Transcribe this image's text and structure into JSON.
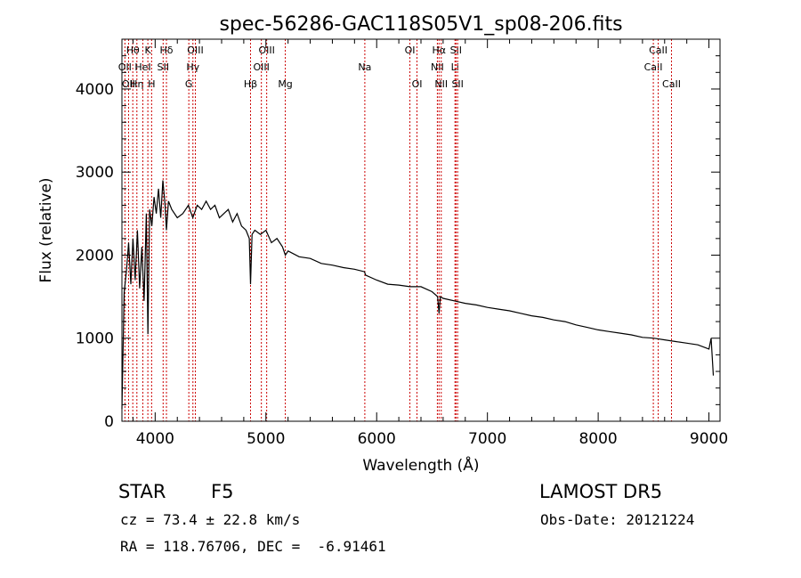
{
  "chart_data": {
    "type": "line",
    "title": "spec-56286-GAC118S05V1_sp08-206.fits",
    "xlabel": "Wavelength (Å)",
    "ylabel": "Flux (relative)",
    "xlim": [
      3700,
      9100
    ],
    "ylim": [
      0,
      4600
    ],
    "xticks": [
      4000,
      5000,
      6000,
      7000,
      8000,
      9000
    ],
    "yticks": [
      0,
      1000,
      2000,
      3000,
      4000
    ],
    "grid": false,
    "series": [
      {
        "x": [
          3700,
          3720,
          3740,
          3760,
          3780,
          3800,
          3820,
          3840,
          3860,
          3880,
          3900,
          3920,
          3935,
          3950,
          3970,
          3990,
          4010,
          4030,
          4050,
          4070,
          4090,
          4102,
          4120,
          4150,
          4200,
          4250,
          4300,
          4340,
          4380,
          4420,
          4460,
          4500,
          4540,
          4580,
          4620,
          4660,
          4700,
          4740,
          4780,
          4820,
          4850,
          4861,
          4875,
          4900,
          4950,
          5000,
          5050,
          5100,
          5150,
          5175,
          5200,
          5300,
          5400,
          5500,
          5600,
          5700,
          5800,
          5890,
          5900,
          6000,
          6100,
          6200,
          6300,
          6400,
          6500,
          6550,
          6563,
          6575,
          6600,
          6700,
          6800,
          6900,
          7000,
          7100,
          7200,
          7300,
          7400,
          7500,
          7600,
          7700,
          7800,
          7900,
          8000,
          8100,
          8200,
          8300,
          8400,
          8500,
          8600,
          8700,
          8800,
          8900,
          9000,
          9020,
          9040
        ],
        "y": [
          150,
          1550,
          1800,
          2150,
          1650,
          2200,
          1700,
          2300,
          1600,
          2100,
          1450,
          2500,
          1050,
          2550,
          2350,
          2700,
          2500,
          2800,
          2450,
          2900,
          2600,
          2300,
          2650,
          2550,
          2450,
          2500,
          2600,
          2450,
          2600,
          2550,
          2650,
          2550,
          2600,
          2450,
          2500,
          2550,
          2400,
          2500,
          2350,
          2300,
          2200,
          1650,
          2250,
          2300,
          2250,
          2300,
          2150,
          2200,
          2100,
          2000,
          2050,
          1980,
          1960,
          1900,
          1880,
          1850,
          1830,
          1800,
          1760,
          1700,
          1650,
          1640,
          1620,
          1620,
          1560,
          1500,
          1300,
          1500,
          1480,
          1450,
          1420,
          1400,
          1370,
          1350,
          1330,
          1300,
          1270,
          1250,
          1220,
          1200,
          1160,
          1130,
          1100,
          1080,
          1060,
          1040,
          1010,
          1000,
          980,
          960,
          940,
          920,
          870,
          1000,
          550
        ]
      }
    ],
    "lines": [
      {
        "x": 3727,
        "label": "OII",
        "row": 2
      },
      {
        "x": 3760,
        "label": "OII",
        "row": 3
      },
      {
        "x": 3798,
        "label": "Hθ",
        "row": 1
      },
      {
        "x": 3835,
        "label": "Hη",
        "row": 3
      },
      {
        "x": 3889,
        "label": "HeI",
        "row": 2
      },
      {
        "x": 3934,
        "label": "K",
        "row": 1
      },
      {
        "x": 3968,
        "label": "H",
        "row": 3
      },
      {
        "x": 4072,
        "label": "SII",
        "row": 2
      },
      {
        "x": 4102,
        "label": "Hδ",
        "row": 1
      },
      {
        "x": 4304,
        "label": "G",
        "row": 3
      },
      {
        "x": 4341,
        "label": "Hγ",
        "row": 2
      },
      {
        "x": 4363,
        "label": "OIII",
        "row": 1
      },
      {
        "x": 4861,
        "label": "Hβ",
        "row": 3
      },
      {
        "x": 4959,
        "label": "OIII",
        "row": 2
      },
      {
        "x": 5007,
        "label": "OIII",
        "row": 1
      },
      {
        "x": 5175,
        "label": "Mg",
        "row": 3
      },
      {
        "x": 5893,
        "label": "Na",
        "row": 2
      },
      {
        "x": 6300,
        "label": "OI",
        "row": 1
      },
      {
        "x": 6364,
        "label": "OI",
        "row": 3
      },
      {
        "x": 6548,
        "label": "NII",
        "row": 2
      },
      {
        "x": 6563,
        "label": "Hα",
        "row": 1
      },
      {
        "x": 6583,
        "label": "NII",
        "row": 3
      },
      {
        "x": 6707,
        "label": "Li",
        "row": 2
      },
      {
        "x": 6716,
        "label": "SII",
        "row": 1
      },
      {
        "x": 6731,
        "label": "SII",
        "row": 3
      },
      {
        "x": 8498,
        "label": "CaII",
        "row": 2
      },
      {
        "x": 8542,
        "label": "CaII",
        "row": 1
      },
      {
        "x": 8662,
        "label": "CaII",
        "row": 3
      }
    ],
    "line_color": "#cc0000",
    "spectrum_color": "#000000"
  },
  "info": {
    "class": "STAR",
    "subclass": "F5",
    "survey": "LAMOST DR5",
    "redshift": "cz = 73.4 ± 22.8 km/s",
    "obs_date": "Obs-Date: 20121224",
    "coords": "RA = 118.76706, DEC =  -6.91461"
  }
}
